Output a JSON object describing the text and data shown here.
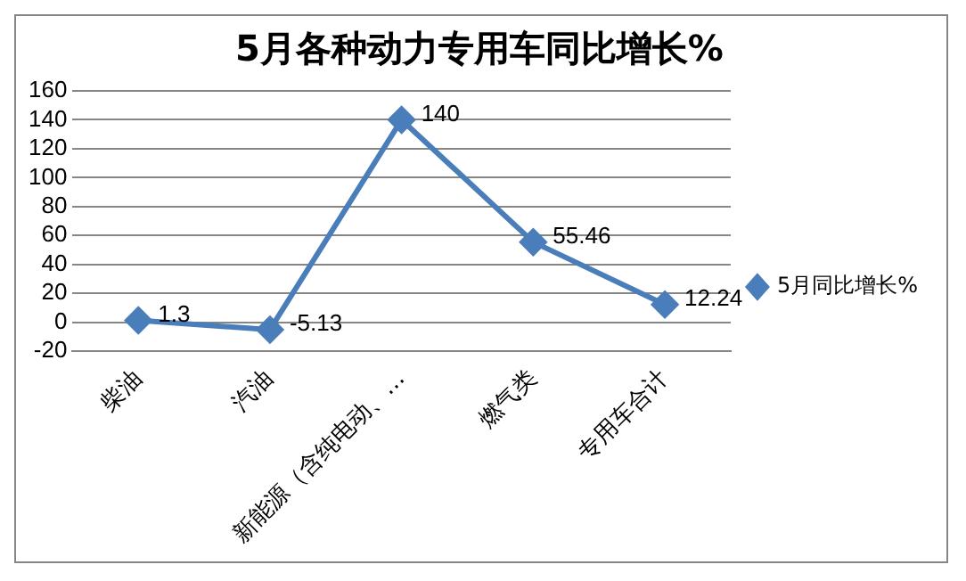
{
  "chart_data": {
    "type": "line",
    "title": "5月各种动力专用车同比增长%",
    "categories": [
      "柴油",
      "汽油",
      "新能源（含纯电动、…",
      "燃气类",
      "专用车合计"
    ],
    "series": [
      {
        "name": "5月同比增长%",
        "color": "#4a7ebb",
        "values": [
          1.3,
          -5.13,
          140,
          55.46,
          12.24
        ]
      }
    ],
    "ylim": [
      -20,
      160
    ],
    "yticks": [
      -20,
      0,
      20,
      40,
      60,
      80,
      100,
      120,
      140,
      160
    ],
    "grid": "y",
    "legend": "right",
    "marker": "diamond",
    "line_style": "solid",
    "data_labels": true
  }
}
